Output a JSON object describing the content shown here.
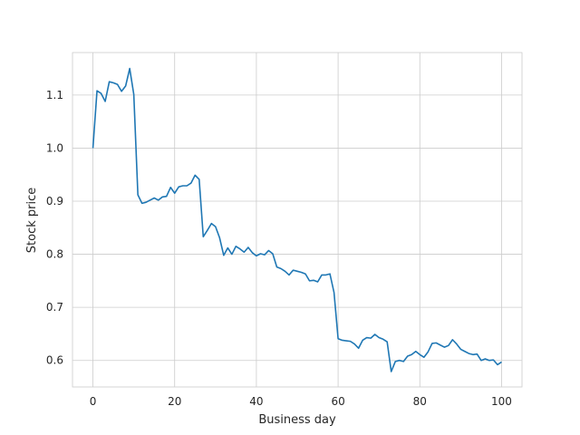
{
  "chart_data": {
    "type": "line",
    "title": "",
    "xlabel": "Business day",
    "ylabel": "Stock price",
    "xlim": [
      -5,
      105
    ],
    "ylim": [
      0.55,
      1.18
    ],
    "xticks": [
      0,
      20,
      40,
      60,
      80,
      100
    ],
    "yticks": [
      0.6,
      0.7,
      0.8,
      0.9,
      1.0,
      1.1
    ],
    "xtick_labels": [
      "0",
      "20",
      "40",
      "60",
      "80",
      "100"
    ],
    "ytick_labels": [
      "0.6",
      "0.7",
      "0.8",
      "0.9",
      "1.0",
      "1.1"
    ],
    "grid": true,
    "line_color": "#1f77b4",
    "series": [
      {
        "x": [
          0,
          1,
          2,
          3,
          4,
          5,
          6,
          7,
          8,
          9,
          10,
          11,
          12,
          13,
          14,
          15,
          16,
          17,
          18,
          19,
          20,
          21,
          22,
          23,
          24,
          25,
          26,
          27,
          28,
          29,
          30,
          31,
          32,
          33,
          34,
          35,
          36,
          37,
          38,
          39,
          40,
          41,
          42,
          43,
          44,
          45,
          46,
          47,
          48,
          49,
          50,
          51,
          52,
          53,
          54,
          55,
          56,
          57,
          58,
          59,
          60,
          61,
          62,
          63,
          64,
          65,
          66,
          67,
          68,
          69,
          70,
          71,
          72,
          73,
          74,
          75,
          76,
          77,
          78,
          79,
          80,
          81,
          82,
          83,
          84,
          85,
          86,
          87,
          88,
          89,
          90,
          91,
          92,
          93,
          94,
          95,
          96,
          97,
          98,
          99,
          100
        ],
        "values": [
          1.0,
          1.108,
          1.103,
          1.088,
          1.125,
          1.123,
          1.12,
          1.107,
          1.117,
          1.15,
          1.101,
          0.912,
          0.896,
          0.898,
          0.902,
          0.906,
          0.902,
          0.908,
          0.909,
          0.926,
          0.915,
          0.927,
          0.929,
          0.929,
          0.934,
          0.949,
          0.941,
          0.833,
          0.845,
          0.858,
          0.852,
          0.831,
          0.798,
          0.812,
          0.8,
          0.815,
          0.81,
          0.804,
          0.813,
          0.803,
          0.797,
          0.801,
          0.799,
          0.807,
          0.801,
          0.776,
          0.773,
          0.768,
          0.761,
          0.77,
          0.768,
          0.766,
          0.763,
          0.75,
          0.751,
          0.748,
          0.761,
          0.761,
          0.763,
          0.728,
          0.641,
          0.638,
          0.637,
          0.636,
          0.631,
          0.623,
          0.638,
          0.643,
          0.642,
          0.649,
          0.643,
          0.64,
          0.635,
          0.579,
          0.598,
          0.6,
          0.598,
          0.608,
          0.611,
          0.617,
          0.611,
          0.606,
          0.616,
          0.632,
          0.633,
          0.629,
          0.625,
          0.628,
          0.639,
          0.631,
          0.621,
          0.617,
          0.613,
          0.611,
          0.612,
          0.6,
          0.603,
          0.6,
          0.601,
          0.592,
          0.597
        ]
      }
    ]
  }
}
